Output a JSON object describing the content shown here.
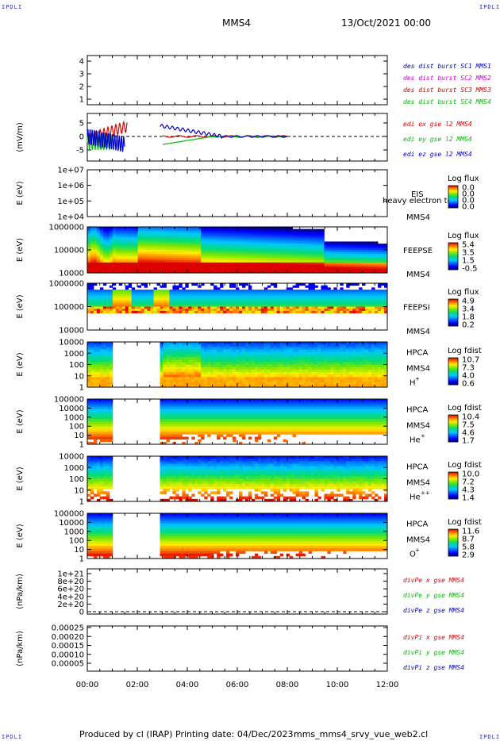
{
  "header": {
    "left_corner": "IPDLI",
    "right_corner": "IPDLI",
    "mission": "MMS4",
    "datetime": "13/Oct/2021 00:00"
  },
  "footer": {
    "left_corner": "IPDLI",
    "right_corner": "IPDLI",
    "produced_by": "Produced by cl (IRAP)",
    "printing_date": "Printing date: 04/Dec/2023",
    "script_name": "mms_mms4_srvy_vue_web2.cl"
  },
  "colors": {
    "mms1": "#0000cc",
    "mms2": "#cc00cc",
    "mms3": "#cc0000",
    "mms4": "#00bb00",
    "x": "#dd0000",
    "y": "#00bb00",
    "z": "#0000cc"
  },
  "chart_data": [
    {
      "type": "line",
      "id": "burst",
      "ylim": [
        0.5,
        4.5
      ],
      "yticks": [
        "1",
        "2",
        "3",
        "4"
      ],
      "legend": [
        {
          "label": "des dist burst SC1 MMS1",
          "color": "#0000cc"
        },
        {
          "label": "des dist burst SC2 MMS2",
          "color": "#cc00cc"
        },
        {
          "label": "des dist burst SC3 MMS3",
          "color": "#cc0000"
        },
        {
          "label": "des dist burst SC4 MMS4",
          "color": "#00bb00"
        }
      ],
      "series": []
    },
    {
      "type": "line",
      "id": "edi",
      "ylabel": "(mV/m)",
      "ylim": [
        -8,
        8
      ],
      "yticks": [
        "5",
        "0",
        "-5"
      ],
      "legend": [
        {
          "label": "edi ex gse l2 MMS4",
          "color": "#dd0000"
        },
        {
          "label": "edi ey gse l2 MMS4",
          "color": "#00bb00"
        },
        {
          "label": "edi ez gse l2 MMS4",
          "color": "#0000cc"
        }
      ]
    },
    {
      "type": "heatmap",
      "id": "eis",
      "ylabel": "E (eV)",
      "yticks": [
        "1e+07",
        "1e+06",
        "1e+05",
        "1e+04"
      ],
      "instrument": "EIS",
      "instrument2": "MMS4",
      "overlay_text": "heavy electron to",
      "colorbar_title": "Log flux",
      "colorbar_ticks": [
        "0.0",
        "0.0",
        "0.0",
        "0.0"
      ],
      "fill": "empty"
    },
    {
      "type": "heatmap",
      "id": "feepse",
      "ylabel": "E (eV)",
      "yticks": [
        "1000000",
        "100000",
        "10000"
      ],
      "instrument": "FEEPSE",
      "instrument2": "MMS4",
      "colorbar_title": "Log flux",
      "colorbar_ticks": [
        "5.4",
        "3.5",
        "1.5",
        "-0.5"
      ],
      "fill": "feepse"
    },
    {
      "type": "heatmap",
      "id": "feepsi",
      "ylabel": "E (eV)",
      "yticks": [
        "1000000",
        "100000",
        "10000"
      ],
      "instrument": "FEEPSI",
      "instrument2": "MMS4",
      "colorbar_title": "Log flux",
      "colorbar_ticks": [
        "4.9",
        "3.4",
        "1.8",
        "0.2"
      ],
      "fill": "feepsi"
    },
    {
      "type": "heatmap",
      "id": "hpca_h",
      "ylabel": "E (eV)",
      "yticks": [
        "10000",
        "1000",
        "100",
        "10",
        "1"
      ],
      "instrument": "HPCA",
      "instrument2": "MMS4",
      "species": "H",
      "species_sup": "+",
      "colorbar_title": "Log fdist",
      "colorbar_ticks": [
        "10.7",
        "7.3",
        "4.0",
        "0.6"
      ],
      "fill": "hpca_h",
      "gap": [
        1.0,
        2.9
      ]
    },
    {
      "type": "heatmap",
      "id": "hpca_he",
      "ylabel": "E (eV)",
      "yticks": [
        "100000",
        "10000",
        "1000",
        "100",
        "10",
        "1"
      ],
      "instrument": "HPCA",
      "instrument2": "MMS4",
      "species": "He",
      "species_sup": "+",
      "colorbar_title": "Log fdist",
      "colorbar_ticks": [
        "10.4",
        "7.5",
        "4.6",
        "1.7"
      ],
      "fill": "hpca_he",
      "gap": [
        1.0,
        2.9
      ]
    },
    {
      "type": "heatmap",
      "id": "hpca_hepp",
      "ylabel": "E (eV)",
      "yticks": [
        "10000",
        "1000",
        "100",
        "10",
        "1"
      ],
      "instrument": "HPCA",
      "instrument2": "MMS4",
      "species": "He",
      "species_sup": "++",
      "colorbar_title": "Log fdist",
      "colorbar_ticks": [
        "10.0",
        "7.2",
        "4.3",
        "1.4"
      ],
      "fill": "hpca_hepp",
      "gap": [
        1.0,
        2.9
      ]
    },
    {
      "type": "heatmap",
      "id": "hpca_o",
      "ylabel": "E (eV)",
      "yticks": [
        "100000",
        "10000",
        "1000",
        "100",
        "10",
        "1"
      ],
      "instrument": "HPCA",
      "instrument2": "MMS4",
      "species": "O",
      "species_sup": "+",
      "colorbar_title": "Log fdist",
      "colorbar_ticks": [
        "11.6",
        "8.7",
        "5.8",
        "2.9"
      ],
      "fill": "hpca_o",
      "gap": [
        1.0,
        2.9
      ]
    },
    {
      "type": "line",
      "id": "divpe",
      "ylabel": "(nPa/km)",
      "yticks": [
        "1e+21",
        "8e+20",
        "6e+20",
        "4e+20",
        "2e+20",
        "0"
      ],
      "legend": [
        {
          "label": "divPe x gse MMS4",
          "color": "#dd0000"
        },
        {
          "label": "divPe y gse MMS4",
          "color": "#00bb00"
        },
        {
          "label": "divPe z gse MMS4",
          "color": "#0000cc"
        }
      ],
      "series": []
    },
    {
      "type": "line",
      "id": "divpi",
      "ylabel": "(nPa/km)",
      "yticks": [
        "0.00025",
        "0.00020",
        "0.00015",
        "0.00010",
        "0.00005"
      ],
      "legend": [
        {
          "label": "divPi x gse MMS4",
          "color": "#dd0000"
        },
        {
          "label": "divPi y gse MMS4",
          "color": "#00bb00"
        },
        {
          "label": "divPi z gse MMS4",
          "color": "#0000cc"
        }
      ],
      "series": []
    }
  ],
  "time_axis": {
    "labels": [
      "00:00",
      "02:00",
      "04:00",
      "06:00",
      "08:00",
      "10:00",
      "12:00"
    ],
    "xlim_hours": [
      0,
      12
    ]
  }
}
